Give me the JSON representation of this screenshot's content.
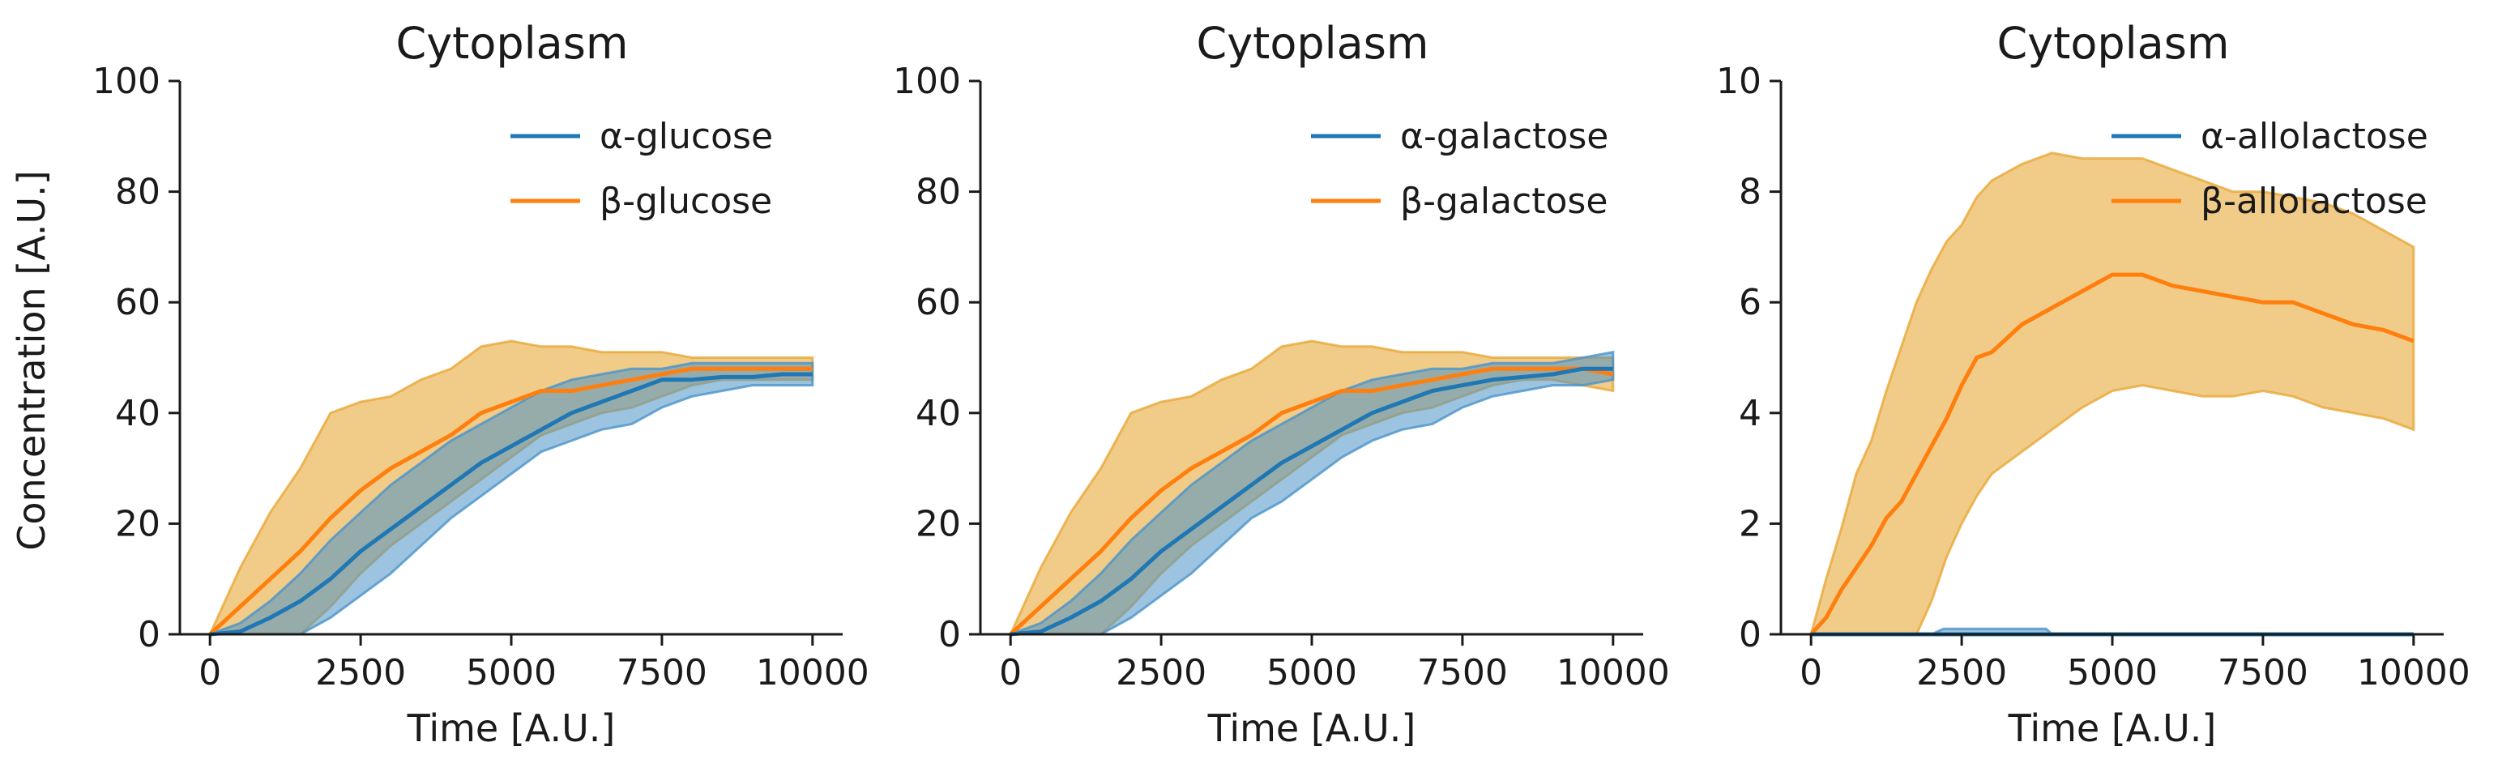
{
  "figure": {
    "ylabel": "Concentration [A.U.]"
  },
  "colors": {
    "alpha": "#1f77b4",
    "beta": "#ff7f0e",
    "beta_band": "#e8a838",
    "alpha_band": "#4a93c9"
  },
  "chart_data": [
    {
      "type": "line",
      "title": "Cytoplasm",
      "xlabel": "Time [A.U.]",
      "ylabel": "Concentration [A.U.]",
      "xlim": [
        -500,
        10500
      ],
      "ylim": [
        0,
        100
      ],
      "xticks": [
        0,
        2500,
        5000,
        7500,
        10000
      ],
      "yticks": [
        0,
        20,
        40,
        60,
        80,
        100
      ],
      "legend_position": "top-right",
      "series": [
        {
          "name": "α-glucose",
          "color_key": "alpha",
          "x": [
            0,
            500,
            1000,
            1500,
            2000,
            2500,
            3000,
            3500,
            4000,
            4500,
            5000,
            5500,
            6000,
            6500,
            7000,
            7500,
            8000,
            8500,
            9000,
            9500,
            10000
          ],
          "mean": [
            0,
            0.5,
            3,
            6,
            10,
            15,
            19,
            23,
            27,
            31,
            34,
            37,
            40,
            42,
            44,
            46,
            46,
            46.5,
            46.5,
            47,
            47
          ],
          "lower": [
            0,
            0,
            0,
            0,
            3,
            7,
            11,
            16,
            21,
            25,
            29,
            33,
            35,
            37,
            38,
            41,
            43,
            44,
            45,
            45,
            45
          ],
          "upper": [
            0,
            2,
            6,
            11,
            17,
            22,
            27,
            31,
            35,
            38,
            41,
            44,
            46,
            47,
            48,
            48,
            49,
            49,
            49,
            49,
            49
          ]
        },
        {
          "name": "β-glucose",
          "color_key": "beta",
          "x": [
            0,
            500,
            1000,
            1500,
            2000,
            2500,
            3000,
            3500,
            4000,
            4500,
            5000,
            5500,
            6000,
            6500,
            7000,
            7500,
            8000,
            8500,
            9000,
            9500,
            10000
          ],
          "mean": [
            0,
            5,
            10,
            15,
            21,
            26,
            30,
            33,
            36,
            40,
            42,
            44,
            44,
            45,
            46,
            47,
            48,
            48,
            48,
            48,
            48
          ],
          "lower": [
            0,
            0,
            0,
            0,
            5,
            11,
            16,
            20,
            24,
            28,
            32,
            36,
            38,
            40,
            41,
            43,
            45,
            46,
            46,
            46,
            46
          ],
          "upper": [
            0,
            12,
            22,
            30,
            40,
            42,
            43,
            46,
            48,
            52,
            53,
            52,
            52,
            51,
            51,
            51,
            50,
            50,
            50,
            50,
            50
          ]
        }
      ]
    },
    {
      "type": "line",
      "title": "Cytoplasm",
      "xlabel": "Time [A.U.]",
      "ylabel": "",
      "xlim": [
        -500,
        10500
      ],
      "ylim": [
        0,
        100
      ],
      "xticks": [
        0,
        2500,
        5000,
        7500,
        10000
      ],
      "yticks": [
        0,
        20,
        40,
        60,
        80,
        100
      ],
      "legend_position": "top-right",
      "series": [
        {
          "name": "α-galactose",
          "color_key": "alpha",
          "x": [
            0,
            500,
            1000,
            1500,
            2000,
            2500,
            3000,
            3500,
            4000,
            4500,
            5000,
            5500,
            6000,
            6500,
            7000,
            7500,
            8000,
            8500,
            9000,
            9500,
            10000
          ],
          "mean": [
            0,
            0.5,
            3,
            6,
            10,
            15,
            19,
            23,
            27,
            31,
            34,
            37,
            40,
            42,
            44,
            45,
            46,
            46.5,
            47,
            48,
            48
          ],
          "lower": [
            0,
            0,
            0,
            0,
            3,
            7,
            11,
            16,
            21,
            24,
            28,
            32,
            35,
            37,
            38,
            41,
            43,
            44,
            45,
            45,
            46
          ],
          "upper": [
            0,
            2,
            6,
            11,
            17,
            22,
            27,
            31,
            35,
            38,
            41,
            44,
            46,
            47,
            48,
            48,
            49,
            49,
            49,
            50,
            51
          ]
        },
        {
          "name": "β-galactose",
          "color_key": "beta",
          "x": [
            0,
            500,
            1000,
            1500,
            2000,
            2500,
            3000,
            3500,
            4000,
            4500,
            5000,
            5500,
            6000,
            6500,
            7000,
            7500,
            8000,
            8500,
            9000,
            9500,
            10000
          ],
          "mean": [
            0,
            5,
            10,
            15,
            21,
            26,
            30,
            33,
            36,
            40,
            42,
            44,
            44,
            45,
            46,
            47,
            48,
            48,
            48,
            48,
            47
          ],
          "lower": [
            0,
            0,
            0,
            0,
            5,
            11,
            16,
            20,
            24,
            28,
            32,
            36,
            38,
            40,
            41,
            43,
            45,
            46,
            46,
            45,
            44
          ],
          "upper": [
            0,
            12,
            22,
            30,
            40,
            42,
            43,
            46,
            48,
            52,
            53,
            52,
            52,
            51,
            51,
            51,
            50,
            50,
            50,
            50,
            50
          ]
        }
      ]
    },
    {
      "type": "line",
      "title": "Cytoplasm",
      "xlabel": "Time [A.U.]",
      "ylabel": "",
      "xlim": [
        -500,
        10500
      ],
      "ylim": [
        0,
        10
      ],
      "xticks": [
        0,
        2500,
        5000,
        7500,
        10000
      ],
      "yticks": [
        0,
        2,
        4,
        6,
        8,
        10
      ],
      "legend_position": "top-right",
      "series": [
        {
          "name": "α-allolactose",
          "color_key": "alpha",
          "x": [
            0,
            2000,
            2200,
            3900,
            4000,
            10000
          ],
          "mean": [
            0,
            0,
            0,
            0,
            0,
            0
          ],
          "lower": [
            0,
            0,
            0,
            0,
            0,
            0
          ],
          "upper": [
            0,
            0,
            0.1,
            0.1,
            0,
            0
          ]
        },
        {
          "name": "β-allolactose",
          "color_key": "beta",
          "x": [
            0,
            250,
            500,
            750,
            1000,
            1250,
            1500,
            1750,
            2000,
            2250,
            2500,
            2750,
            3000,
            3500,
            4000,
            4500,
            5000,
            5500,
            6000,
            6500,
            7000,
            7500,
            8000,
            8500,
            9000,
            9500,
            10000
          ],
          "mean": [
            0,
            0.3,
            0.8,
            1.2,
            1.6,
            2.1,
            2.4,
            2.9,
            3.4,
            3.9,
            4.5,
            5.0,
            5.1,
            5.6,
            5.9,
            6.2,
            6.5,
            6.5,
            6.3,
            6.2,
            6.1,
            6.0,
            6.0,
            5.8,
            5.6,
            5.5,
            5.3
          ],
          "lower": [
            0,
            0,
            0,
            0,
            0,
            0,
            0,
            0,
            0.6,
            1.4,
            2.0,
            2.5,
            2.9,
            3.3,
            3.7,
            4.1,
            4.4,
            4.5,
            4.4,
            4.3,
            4.3,
            4.4,
            4.3,
            4.1,
            4.0,
            3.9,
            3.7
          ],
          "upper": [
            0,
            1.0,
            1.9,
            2.9,
            3.5,
            4.4,
            5.2,
            6.0,
            6.6,
            7.1,
            7.4,
            7.9,
            8.2,
            8.5,
            8.7,
            8.6,
            8.6,
            8.6,
            8.4,
            8.2,
            8.0,
            8.0,
            7.9,
            7.8,
            7.6,
            7.3,
            7.0
          ]
        }
      ]
    }
  ]
}
